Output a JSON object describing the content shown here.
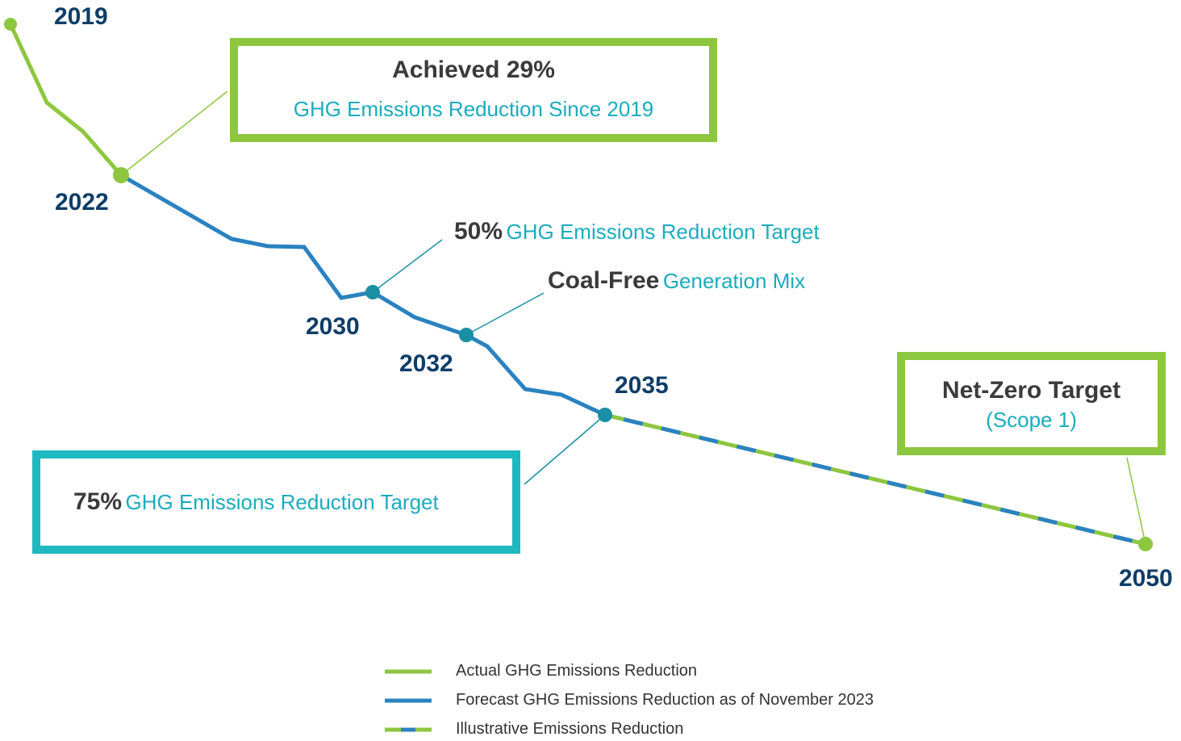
{
  "milestones": [
    "2019",
    "2022",
    "2030",
    "2032",
    "2035",
    "2050"
  ],
  "callouts": [
    {
      "bold": "Achieved 29%",
      "text": "GHG Emissions Reduction Since 2019"
    },
    {
      "bold": "50%",
      "text": "GHG Emissions Reduction Target"
    },
    {
      "bold": "Coal-Free",
      "text": "Generation Mix"
    },
    {
      "bold": "75%",
      "text": "GHG Emissions Reduction Target"
    },
    {
      "bold": "Net-Zero Target",
      "text": "(Scope 1)"
    }
  ],
  "legend": [
    "Actual GHG Emissions Reduction",
    "Forecast GHG Emissions Reduction as of November 2023",
    "Illustrative Emissions Reduction"
  ]
}
